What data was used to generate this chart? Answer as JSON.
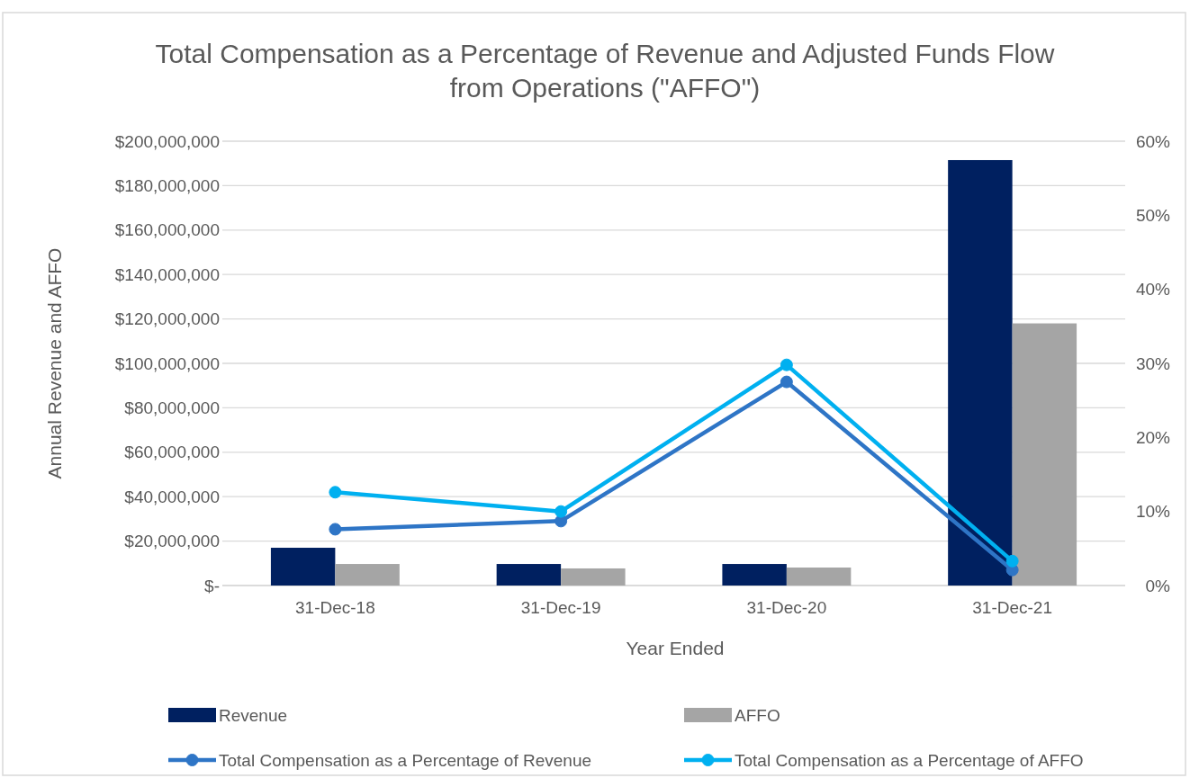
{
  "chart_data": {
    "type": "bar",
    "title": "Total Compensation as a Percentage of Revenue and Adjusted Funds Flow from Operations (\"AFFO\")",
    "xlabel": "Year Ended",
    "ylabel": "Annual Revenue and AFFO",
    "categories": [
      "31-Dec-18",
      "31-Dec-19",
      "31-Dec-20",
      "31-Dec-21"
    ],
    "series": [
      {
        "name": "Revenue",
        "color": "#002060",
        "values": [
          17000000,
          9700000,
          9700000,
          191500000
        ]
      },
      {
        "name": "AFFO",
        "color": "#a5a5a5",
        "values": [
          9700000,
          7700000,
          8100000,
          118000000
        ]
      },
      {
        "name": "Total Compensation as a Percentage of Revenue",
        "type": "line",
        "axis": "y2",
        "color": "#2e75c6",
        "values": [
          7.6,
          8.7,
          27.5,
          2.1
        ]
      },
      {
        "name": "Total Compensation as a Percentage of AFFO",
        "type": "line",
        "axis": "y2",
        "color": "#00b0f0",
        "values": [
          12.6,
          10,
          29.8,
          3.3
        ]
      }
    ],
    "ylim": [
      0,
      200000000
    ],
    "yticks": [
      {
        "value": 0,
        "label": "$-"
      },
      {
        "value": 20000000,
        "label": "$20,000,000"
      },
      {
        "value": 40000000,
        "label": "$40,000,000"
      },
      {
        "value": 60000000,
        "label": "$60,000,000"
      },
      {
        "value": 80000000,
        "label": "$80,000,000"
      },
      {
        "value": 100000000,
        "label": "$100,000,000"
      },
      {
        "value": 120000000,
        "label": "$120,000,000"
      },
      {
        "value": 140000000,
        "label": "$140,000,000"
      },
      {
        "value": 160000000,
        "label": "$160,000,000"
      },
      {
        "value": 180000000,
        "label": "$180,000,000"
      },
      {
        "value": 200000000,
        "label": "$200,000,000"
      }
    ],
    "y2lim": [
      0,
      60
    ],
    "y2ticks": [
      {
        "value": 0,
        "label": "0%"
      },
      {
        "value": 10,
        "label": "10%"
      },
      {
        "value": 20,
        "label": "20%"
      },
      {
        "value": 30,
        "label": "30%"
      },
      {
        "value": 40,
        "label": "40%"
      },
      {
        "value": 50,
        "label": "50%"
      },
      {
        "value": 60,
        "label": "60%"
      }
    ],
    "grid": "y",
    "legend": "bottom",
    "marker": "circle",
    "line_style": "solid"
  }
}
